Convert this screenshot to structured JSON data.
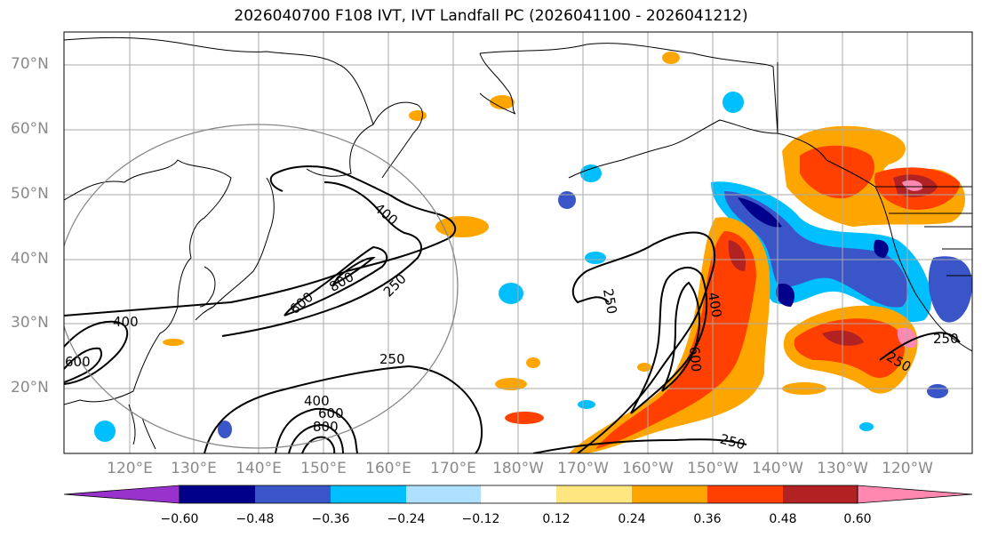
{
  "title": "2026040700 F108 IVT, IVT Landfall PC (2026041100 - 2026041212)",
  "lat_labels": [
    "70°N",
    "60°N",
    "50°N",
    "40°N",
    "30°N",
    "20°N"
  ],
  "lon_labels": [
    "120°E",
    "130°E",
    "140°E",
    "150°E",
    "160°E",
    "170°E",
    "180°W",
    "170°W",
    "160°W",
    "150°W",
    "140°W",
    "130°W",
    "120°W"
  ],
  "contour_labels": [
    "400",
    "600",
    "800",
    "250",
    "400",
    "600",
    "250",
    "250",
    "400",
    "600",
    "800",
    "250",
    "400",
    "600",
    "250",
    "250"
  ],
  "colorbar": {
    "ticks": [
      "−0.60",
      "−0.48",
      "−0.36",
      "−0.24",
      "−0.12",
      "0.12",
      "0.24",
      "0.36",
      "0.48",
      "0.60"
    ],
    "colors": [
      "#9932cc",
      "#00008b",
      "#3a55c8",
      "#00bfff",
      "#b0e0ff",
      "#ffffff",
      "#ffe680",
      "#ffa500",
      "#ff4000",
      "#b22222",
      "#ff88b0"
    ]
  },
  "palette": {
    "land_border": "#000000",
    "grid": "#aaaaaa",
    "circle": "#888888",
    "contour": "#000000"
  }
}
